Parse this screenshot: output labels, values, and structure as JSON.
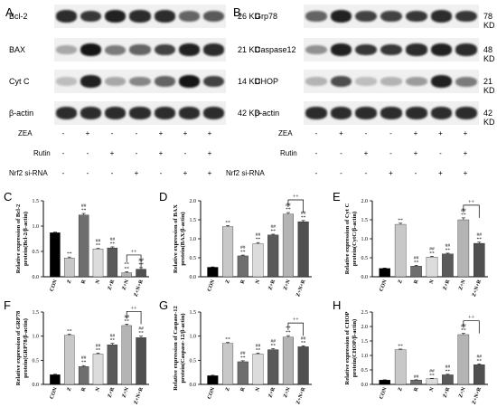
{
  "panels": {
    "A": "A",
    "B": "B",
    "C": "C",
    "D": "D",
    "E": "E",
    "F": "F",
    "G": "G",
    "H": "H"
  },
  "blots_left": [
    {
      "label": "Bcl-2",
      "size": "26 KD",
      "intensity": [
        0.85,
        0.8,
        0.9,
        0.85,
        0.85,
        0.6,
        0.65
      ]
    },
    {
      "label": "BAX",
      "size": "21 KD",
      "intensity": [
        0.3,
        0.95,
        0.5,
        0.6,
        0.75,
        0.9,
        0.85
      ]
    },
    {
      "label": "Cyt C",
      "size": "14 KD",
      "intensity": [
        0.2,
        0.9,
        0.3,
        0.45,
        0.6,
        0.95,
        0.75
      ]
    },
    {
      "label": "β-actin",
      "size": "42 KD",
      "intensity": [
        0.85,
        0.85,
        0.85,
        0.85,
        0.85,
        0.85,
        0.85
      ]
    }
  ],
  "blots_right": [
    {
      "label": "Grp78",
      "size": "78 KD",
      "intensity": [
        0.6,
        0.9,
        0.75,
        0.75,
        0.8,
        0.85,
        0.8
      ]
    },
    {
      "label": "Caspase12",
      "size": "48 KD",
      "intensity": [
        0.4,
        0.9,
        0.8,
        0.8,
        0.85,
        0.9,
        0.85
      ]
    },
    {
      "label": "CHOP",
      "size": "21 KD",
      "intensity": [
        0.25,
        0.7,
        0.2,
        0.25,
        0.35,
        0.9,
        0.5
      ]
    },
    {
      "label": "β-actin",
      "size": "42 KD",
      "intensity": [
        0.85,
        0.85,
        0.85,
        0.85,
        0.85,
        0.85,
        0.85
      ]
    }
  ],
  "treatment": {
    "rows": [
      {
        "name": "ZEA",
        "signs": [
          "-",
          "+",
          "-",
          "-",
          "+",
          "+",
          "+"
        ]
      },
      {
        "name": "Rutin",
        "signs": [
          "-",
          "-",
          "+",
          "-",
          "+",
          "-",
          "+"
        ]
      },
      {
        "name": "Nrf2 si-RNA",
        "signs": [
          "-",
          "-",
          "-",
          "+",
          "-",
          "+",
          "+"
        ]
      }
    ]
  },
  "chart_data": [
    {
      "panel": "C",
      "type": "bar",
      "ylabel": "Relative expression of Bcl-2 protein(Bcl-2/β-actin)",
      "categories": [
        "CON",
        "Z",
        "R",
        "N",
        "Z+R",
        "Z+N",
        "Z+N+R"
      ],
      "values": [
        0.87,
        0.37,
        1.22,
        0.55,
        0.57,
        0.08,
        0.15
      ],
      "errors": [
        0.01,
        0.02,
        0.03,
        0.01,
        0.02,
        0.02,
        0.03
      ],
      "ylim": [
        0,
        1.5
      ],
      "yticks": [
        "0.0",
        "0.5",
        "1.0",
        "1.5"
      ],
      "annotations": [
        "",
        "**",
        "##\n**",
        "##\n**",
        "##\n**",
        "**\n**",
        "##\n**"
      ],
      "bracket": {
        "from": 5,
        "to": 6,
        "label": "++"
      }
    },
    {
      "panel": "D",
      "type": "bar",
      "ylabel": "Relative expression of BAX protein(BAX/β-actin)",
      "categories": [
        "CON",
        "Z",
        "R",
        "N",
        "Z+R",
        "Z+N",
        "Z+N+R"
      ],
      "values": [
        0.25,
        1.32,
        0.55,
        0.87,
        1.1,
        1.65,
        1.45
      ],
      "errors": [
        0.01,
        0.03,
        0.02,
        0.03,
        0.02,
        0.04,
        0.03
      ],
      "ylim": [
        0,
        2.0
      ],
      "yticks": [
        "0.0",
        "0.5",
        "1.0",
        "1.5",
        "2.0"
      ],
      "annotations": [
        "",
        "**",
        "##\n**",
        "##\n**",
        "##\n**",
        "##\n**",
        "##\n**"
      ],
      "bracket": {
        "from": 5,
        "to": 6,
        "label": "++"
      }
    },
    {
      "panel": "E",
      "type": "bar",
      "ylabel": "Relative expression of Cyt C protein(CytC/β-actin)",
      "categories": [
        "CON",
        "Z",
        "R",
        "N",
        "Z+R",
        "Z+N",
        "Z+N+R"
      ],
      "values": [
        0.22,
        1.38,
        0.28,
        0.52,
        0.6,
        1.5,
        0.88
      ],
      "errors": [
        0.01,
        0.03,
        0.02,
        0.02,
        0.02,
        0.05,
        0.03
      ],
      "ylim": [
        0,
        2.0
      ],
      "yticks": [
        "0.0",
        "0.5",
        "1.0",
        "1.5",
        "2.0"
      ],
      "annotations": [
        "",
        "**",
        "##\n**",
        "##\n**",
        "##\n**",
        "##\n**",
        "##\n**"
      ],
      "bracket": {
        "from": 5,
        "to": 6,
        "label": "++"
      }
    },
    {
      "panel": "F",
      "type": "bar",
      "ylabel": "Relative expression of GRP78 protein(GRP78/β-actin)",
      "categories": [
        "CON",
        "Z",
        "R",
        "N",
        "Z+R",
        "Z+N",
        "Z+N+R"
      ],
      "values": [
        0.2,
        1.02,
        0.37,
        0.63,
        0.82,
        1.22,
        0.97
      ],
      "errors": [
        0.01,
        0.02,
        0.02,
        0.02,
        0.03,
        0.03,
        0.03
      ],
      "ylim": [
        0,
        1.5
      ],
      "yticks": [
        "0.0",
        "0.5",
        "1.0",
        "1.5"
      ],
      "annotations": [
        "",
        "**",
        "##\n**",
        "##\n**",
        "##\n**",
        "##\n**",
        "##\n**"
      ],
      "bracket": {
        "from": 5,
        "to": 6,
        "label": "++"
      }
    },
    {
      "panel": "G",
      "type": "bar",
      "ylabel": "Relative expression of Caspase-12 protein(Caspase-12/β-actin)",
      "categories": [
        "CON",
        "Z",
        "R",
        "N",
        "Z+R",
        "Z+N",
        "Z+N+R"
      ],
      "values": [
        0.18,
        0.85,
        0.47,
        0.63,
        0.72,
        0.98,
        0.78
      ],
      "errors": [
        0.01,
        0.02,
        0.02,
        0.02,
        0.02,
        0.03,
        0.02
      ],
      "ylim": [
        0,
        1.5
      ],
      "yticks": [
        "0.0",
        "0.5",
        "1.0",
        "1.5"
      ],
      "annotations": [
        "",
        "**",
        "##\n**",
        "##\n**",
        "##\n**",
        "**\n**",
        "##\n**"
      ],
      "bracket": {
        "from": 5,
        "to": 6,
        "label": "++"
      }
    },
    {
      "panel": "H",
      "type": "bar",
      "ylabel": "Relative expression of CHOP protein(CHOP/β-actin)",
      "categories": [
        "CON",
        "Z",
        "R",
        "N",
        "Z+R",
        "Z+N",
        "Z+N+R"
      ],
      "values": [
        0.15,
        1.2,
        0.15,
        0.2,
        0.33,
        1.72,
        0.68
      ],
      "errors": [
        0.01,
        0.02,
        0.01,
        0.01,
        0.02,
        0.04,
        0.03
      ],
      "ylim": [
        0,
        2.5
      ],
      "yticks": [
        "0.0",
        "0.5",
        "1.0",
        "1.5",
        "2.0",
        "2.5"
      ],
      "annotations": [
        "",
        "**",
        "##",
        "##\n**",
        "##\n**",
        "##\n**",
        "##\n**"
      ],
      "bracket": {
        "from": 5,
        "to": 6,
        "label": "++"
      }
    }
  ]
}
